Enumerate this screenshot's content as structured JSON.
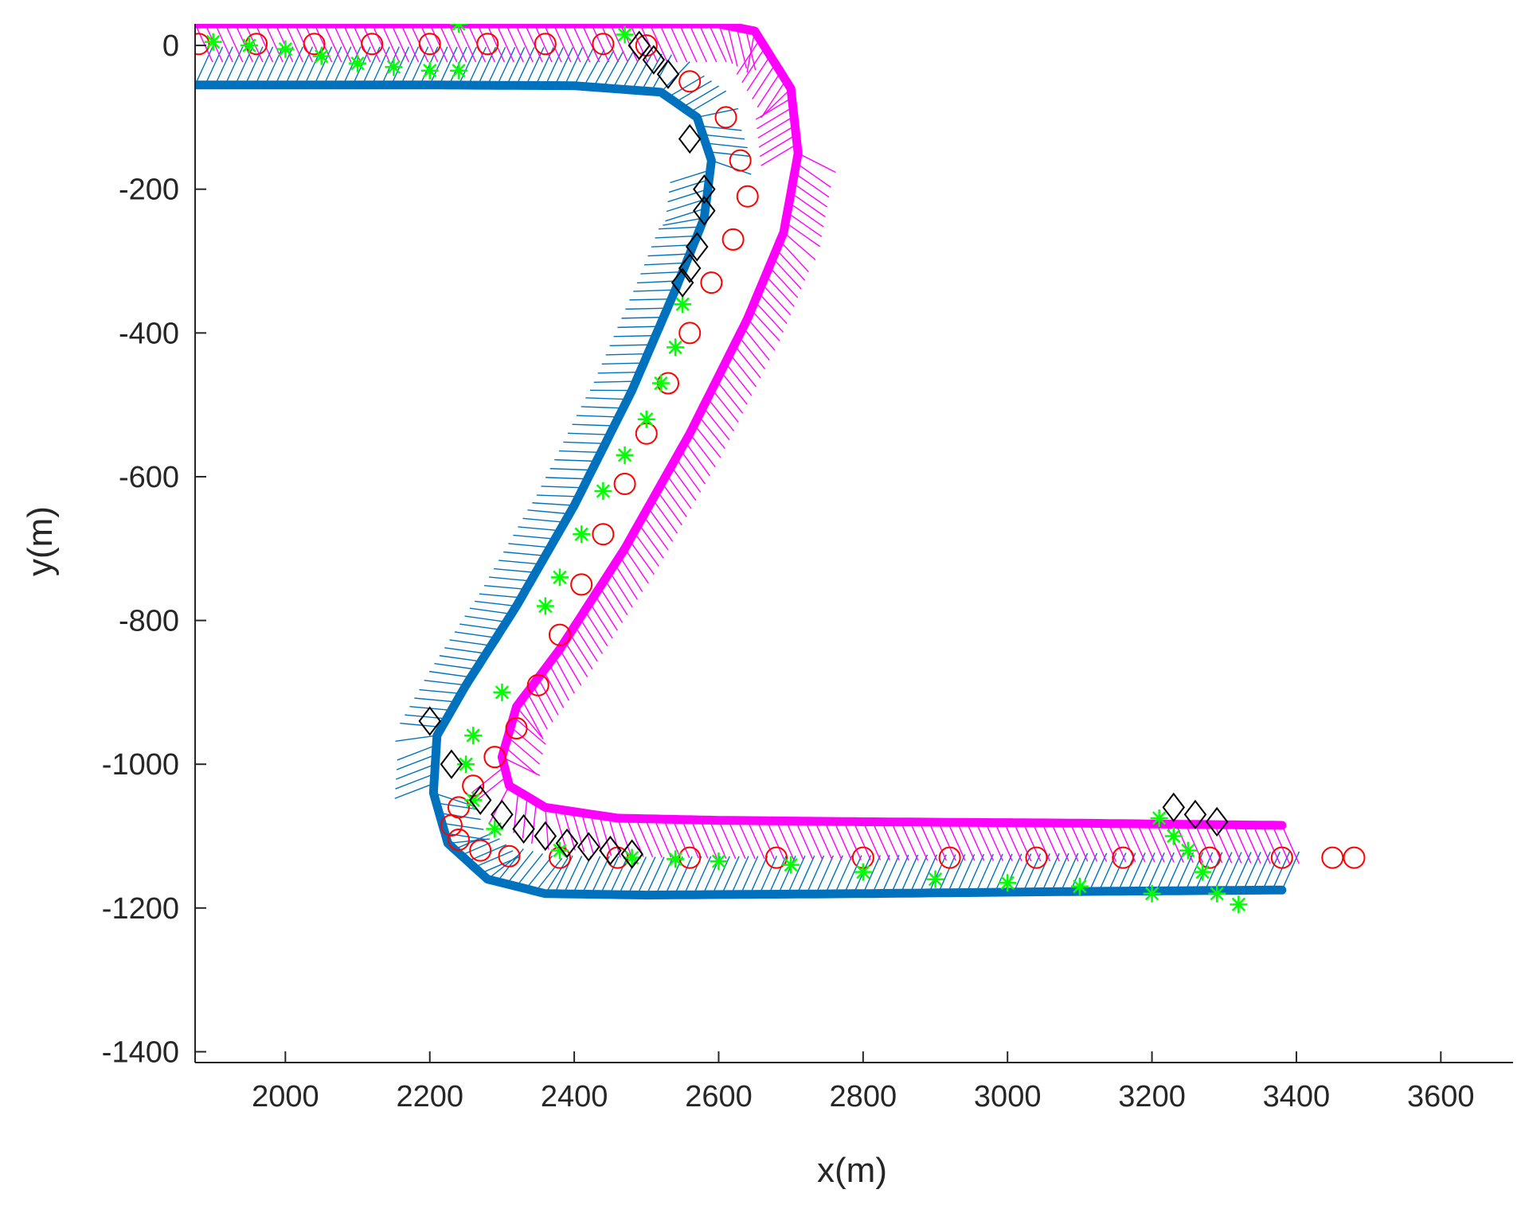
{
  "chart_data": {
    "type": "scatter",
    "xlabel": "x(m)",
    "ylabel": "y(m)",
    "xlim": [
      1875,
      3700
    ],
    "ylim": [
      -1415,
      30
    ],
    "xticks": [
      2000,
      2200,
      2400,
      2600,
      2800,
      3000,
      3200,
      3400,
      3600
    ],
    "yticks": [
      0,
      -200,
      -400,
      -600,
      -800,
      -1000,
      -1200,
      -1400
    ],
    "xtick_labels": [
      "2000",
      "2200",
      "2400",
      "2600",
      "2800",
      "3000",
      "3200",
      "3400",
      "3600"
    ],
    "ytick_labels": [
      "0",
      "-200",
      "-400",
      "-600",
      "-800",
      "-1000",
      "-1200",
      "-1400"
    ],
    "grid": false,
    "legend": "none",
    "series": [
      {
        "marker": "hatched-band",
        "color": "#0072BD",
        "x": [
          1875,
          2000,
          2200,
          2400,
          2520,
          2570,
          2590,
          2580,
          2540,
          2480,
          2400,
          2320,
          2250,
          2210,
          2205,
          2225,
          2280,
          2360,
          2500,
          2800,
          3100,
          3380
        ],
        "y": [
          -55,
          -55,
          -55,
          -56,
          -65,
          -100,
          -160,
          -240,
          -340,
          -480,
          -640,
          -780,
          -890,
          -960,
          -1040,
          -1110,
          -1160,
          -1180,
          -1182,
          -1180,
          -1177,
          -1175
        ]
      },
      {
        "marker": "hatched-band",
        "color": "#FF00FF",
        "x": [
          1875,
          2000,
          2200,
          2450,
          2600,
          2650,
          2700,
          2710,
          2690,
          2640,
          2560,
          2470,
          2380,
          2320,
          2300,
          2310,
          2360,
          2460,
          2600,
          2800,
          3100,
          3380
        ],
        "y": [
          30,
          30,
          30,
          30,
          30,
          20,
          -60,
          -150,
          -260,
          -380,
          -540,
          -700,
          -840,
          -920,
          -990,
          -1030,
          -1060,
          -1075,
          -1078,
          -1080,
          -1082,
          -1085
        ]
      },
      {
        "marker": "circle",
        "color": "#FF0000",
        "x": [
          1880,
          1960,
          2040,
          2120,
          2200,
          2280,
          2360,
          2440,
          2500,
          2560,
          2610,
          2630,
          2640,
          2620,
          2590,
          2560,
          2530,
          2500,
          2470,
          2440,
          2410,
          2380,
          2350,
          2320,
          2290,
          2260,
          2240,
          2230,
          2240,
          2270,
          2310,
          2380,
          2460,
          2560,
          2680,
          2800,
          2920,
          3040,
          3160,
          3280,
          3380,
          3450,
          3480
        ],
        "y": [
          2,
          2,
          2,
          2,
          2,
          2,
          2,
          2,
          0,
          -50,
          -100,
          -160,
          -210,
          -270,
          -330,
          -400,
          -470,
          -540,
          -610,
          -680,
          -750,
          -820,
          -890,
          -950,
          -990,
          -1030,
          -1060,
          -1085,
          -1105,
          -1120,
          -1128,
          -1130,
          -1130,
          -1130,
          -1130,
          -1130,
          -1130,
          -1130,
          -1130,
          -1130,
          -1130,
          -1130,
          -1130
        ]
      },
      {
        "marker": "asterisk",
        "color": "#00FF00",
        "x": [
          1900,
          1950,
          2000,
          2050,
          2100,
          2150,
          2200,
          2240,
          2240,
          2470,
          2550,
          2540,
          2520,
          2500,
          2470,
          2440,
          2410,
          2380,
          2360,
          2300,
          2260,
          2250,
          2260,
          2290,
          2380,
          2480,
          2540,
          2600,
          2700,
          2800,
          2900,
          3000,
          3100,
          3200,
          3210,
          3230,
          3250,
          3270,
          3290,
          3320
        ],
        "y": [
          5,
          0,
          -5,
          -15,
          -25,
          -30,
          -35,
          -35,
          30,
          15,
          -360,
          -420,
          -470,
          -520,
          -570,
          -620,
          -680,
          -740,
          -780,
          -900,
          -960,
          -1000,
          -1050,
          -1090,
          -1120,
          -1130,
          -1132,
          -1135,
          -1140,
          -1150,
          -1160,
          -1165,
          -1170,
          -1180,
          -1075,
          -1100,
          -1120,
          -1150,
          -1180,
          -1195
        ]
      },
      {
        "marker": "diamond",
        "color": "#000000",
        "x": [
          2490,
          2510,
          2530,
          2560,
          2580,
          2580,
          2570,
          2560,
          2550,
          2200,
          2230,
          2270,
          2300,
          2330,
          2360,
          2390,
          2420,
          2450,
          2480,
          3230,
          3260,
          3290
        ],
        "y": [
          0,
          -20,
          -40,
          -130,
          -200,
          -230,
          -280,
          -310,
          -330,
          -940,
          -1000,
          -1050,
          -1070,
          -1090,
          -1100,
          -1110,
          -1115,
          -1120,
          -1125,
          -1060,
          -1070,
          -1080
        ]
      }
    ]
  }
}
